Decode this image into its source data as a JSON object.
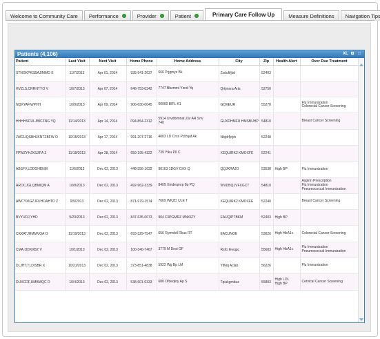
{
  "tabs": [
    {
      "label": "Welcome to Community Care",
      "dot": false
    },
    {
      "label": "Performance",
      "dot": true
    },
    {
      "label": "Provider",
      "dot": true
    },
    {
      "label": "Patient",
      "dot": true
    },
    {
      "label": "Primary Care Follow Up",
      "dot": false,
      "active": true
    },
    {
      "label": "Measure Definitions",
      "dot": false
    },
    {
      "label": "Navigation Tips",
      "dot": false
    }
  ],
  "panel": {
    "title": "Patients (4,106)",
    "icons": [
      "XL",
      "⧉",
      "□"
    ]
  },
  "columns": [
    "Patient",
    "Last Visit",
    "Next Visit",
    "Home Phone",
    "Home Address",
    "City",
    "Zip",
    "Health Alert",
    "Over Due Treatment"
  ],
  "rows": [
    {
      "patient": "STNGKPKSBAJIMMO E",
      "last": "11/7/2013",
      "next": "Apr 01, 2014",
      "phone": "935-941-2637",
      "address": "666 Prjgmys Bk",
      "city": "Zxdufifjkd",
      "zip": "52403",
      "alert": "",
      "treatment": ""
    },
    {
      "patient": "HVZLS,CRRHTYO V",
      "last": "10/7/2013",
      "next": "Apr 07, 2014",
      "phone": "646-753-0342",
      "address": "7747 Bbzmmi Yzraf Yq",
      "city": "Qrtjmxra Arts",
      "zip": "52750",
      "alert": "",
      "treatment": ""
    },
    {
      "patient": "NQXYAF,WPHH",
      "last": "10/9/2013",
      "next": "Apr 09, 2014",
      "phone": "906-630-0045",
      "address": "00900 BIFL K1",
      "city": "GOXEUR",
      "zip": "55270",
      "alert": "",
      "treatment": "Flu Immunization\nColorectal Cancer Screening"
    },
    {
      "patient": "HHHHSCULJBICZNG YQ",
      "last": "11/14/2013",
      "next": "Apr 14, 2014",
      "phone": "094-854-2312",
      "address": "5914 Urvdbimnat Zar AR Snv\n740",
      "city": "GUXDHMFU HMSBUHP",
      "zip": "54810",
      "alert": "",
      "treatment": "Breast Cancer Screening"
    },
    {
      "patient": "JWGUQSBHJKNTZBFW O",
      "last": "10/15/2013",
      "next": "Apr 17, 2014",
      "phone": "991-207-2716",
      "address": "4003 LD Crss Pcfzqaf Ak",
      "city": "Nbjdrfjdyb",
      "zip": "52248",
      "alert": "",
      "treatment": ""
    },
    {
      "patient": "FPWZYHJXSJIFA Z",
      "last": "11/18/2013",
      "next": "Apr 28, 2014",
      "phone": "659-195-4322",
      "address": "739 Ytku P6 C",
      "city": "XEQUIRK2 KMOXFE",
      "zip": "52241",
      "alert": "",
      "treatment": ""
    },
    {
      "patient": "ABSFV,LDDGHENM",
      "last": "11/6/2013",
      "next": "Dec 02, 2013",
      "phone": "448-356-1632",
      "address": "90163 1DGV CHX Q",
      "city": "QQJKRAJO",
      "zip": "53538",
      "alert": "High BP",
      "treatment": "Flu Immunization"
    },
    {
      "patient": "AROCJGLQBMIQM A",
      "last": "10/8/2013",
      "next": "Dec 02, 2013",
      "phone": "492-962-3339",
      "address": "8409 Xmdeqmrp 8q PQ",
      "city": "WVDBQ,IVFXGCT",
      "zip": "54810",
      "alert": "",
      "treatment": "Aspirin Prescription\nFlu Immunization\nPneumococcal Immunization"
    },
    {
      "patient": "AWCYXIGZJFUHOAHTD Z",
      "last": "9/9/2013",
      "next": "Dec 02, 2013",
      "phone": "871-979-1574",
      "address": "7669 WKZD ULE T",
      "city": "XEQUIRK2 KMOXFE",
      "zip": "52240",
      "alert": "",
      "treatment": "Breast Cancer Screening"
    },
    {
      "patient": "BVYUDJ,YHD",
      "last": "5/29/2013",
      "next": "Dec 02, 2013",
      "phone": "847-635-0073",
      "address": "904 F3PGMRZ MNKIZY",
      "city": "EAUQIPTBKM",
      "zip": "52403",
      "alert": "High BP",
      "treatment": ""
    },
    {
      "patient": "CKKATJHMMVQA O",
      "last": "11/19/2013",
      "next": "Dec 02, 2013",
      "phone": "693-329-7547",
      "address": "656 Rymrddl Rkus RT",
      "city": "EACUNOE",
      "zip": "53626",
      "alert": "High HbA1c",
      "treatment": "Colorectal Cancer Screening"
    },
    {
      "patient": "CMA,ODXXBZ V",
      "last": "10/1/2013",
      "next": "Dec 02, 2013",
      "phone": "100-340-7467",
      "address": "3779 M Desi GF",
      "city": "Rsfci Ewqpc",
      "zip": "55603",
      "alert": "High HbA1c",
      "treatment": "Flu Immunization\nPneumococcal Immunization"
    },
    {
      "patient": "DLJHT,TLDISBR X",
      "last": "10/21/2013",
      "next": "Dec 02, 2013",
      "phone": "373-851-4838",
      "address": "5922 Wg Bp LM",
      "city": "Ylfkiq Aclab",
      "zip": "56226",
      "alert": "",
      "treatment": "Flu Immunization"
    },
    {
      "patient": "DUXCDF,UMBMQC D",
      "last": "10/4/2013",
      "next": "Dec 02, 2013",
      "phone": "538-601-0333",
      "address": "680 Ofdeqkry Ap S",
      "city": "Tqiukgmbuz",
      "zip": "55803",
      "alert": "High LDL\nHigh BP",
      "treatment": "Cervical Cancer Screening"
    }
  ],
  "colors": {
    "accent": "#3d7fb5",
    "dot": "#3aa53a",
    "stripe": "#fbf5fb"
  }
}
